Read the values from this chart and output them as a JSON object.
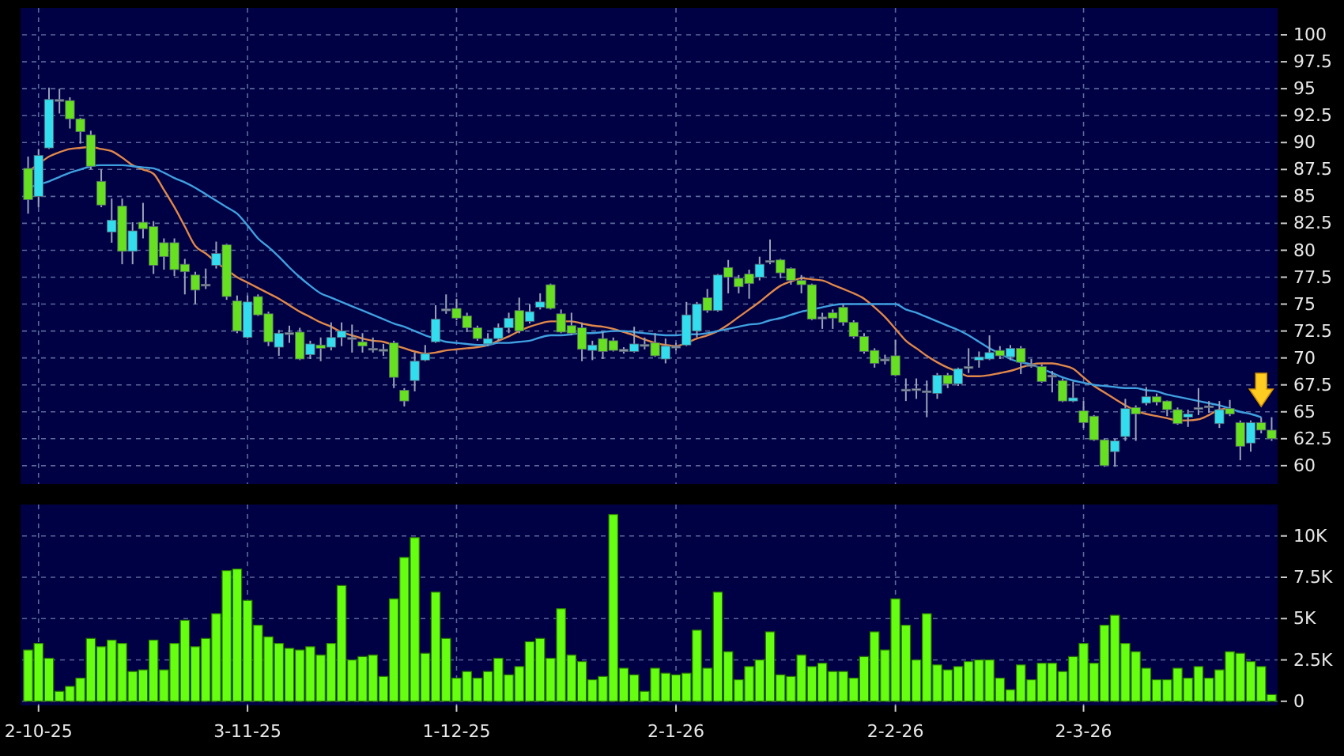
{
  "chart_data": [
    {
      "type": "candlestick",
      "categories": [
        null,
        null,
        null,
        null,
        null,
        null,
        null,
        null,
        null,
        null,
        null,
        null,
        null,
        null,
        null,
        null,
        null,
        null,
        null,
        null,
        null,
        null,
        null,
        null,
        null,
        null,
        null,
        null,
        null,
        null,
        null,
        null,
        null,
        null,
        null,
        null,
        null,
        null,
        null,
        null,
        null,
        null,
        null,
        null,
        null,
        null,
        null,
        null,
        null,
        null,
        null,
        null,
        null,
        null,
        null,
        null,
        null,
        null,
        null,
        null,
        null,
        null,
        null,
        null,
        null,
        null,
        null,
        null,
        null,
        null,
        null,
        null,
        null,
        null,
        null,
        null,
        null,
        null,
        null,
        null,
        null,
        null,
        null,
        null,
        null,
        null,
        null,
        null,
        null,
        null,
        null,
        null,
        null,
        null,
        null,
        null,
        null,
        null,
        null,
        null,
        null,
        null,
        null,
        null,
        null,
        null,
        null,
        null,
        null,
        null,
        null,
        null,
        null,
        null,
        null,
        null,
        null,
        null,
        null,
        null
      ],
      "ohlc": [
        [
          87.6,
          88.7,
          83.4,
          84.7
        ],
        [
          85.0,
          89.4,
          84.0,
          88.8
        ],
        [
          89.5,
          95.1,
          89.4,
          94.0
        ],
        [
          94.0,
          95.0,
          92.7,
          93.9
        ],
        [
          93.9,
          94.2,
          91.3,
          92.2
        ],
        [
          92.2,
          92.3,
          89.9,
          91.0
        ],
        [
          90.7,
          91.1,
          87.5,
          87.8
        ],
        [
          86.4,
          87.5,
          84.0,
          84.2
        ],
        [
          81.7,
          84.8,
          80.7,
          82.8
        ],
        [
          84.1,
          84.8,
          78.7,
          79.9
        ],
        [
          79.9,
          82.6,
          78.7,
          81.8
        ],
        [
          82.6,
          84.4,
          81.1,
          82.0
        ],
        [
          82.2,
          82.7,
          77.8,
          78.6
        ],
        [
          80.7,
          81.1,
          78.2,
          79.4
        ],
        [
          80.7,
          81.1,
          77.6,
          78.2
        ],
        [
          78.7,
          79.2,
          75.9,
          78.0
        ],
        [
          77.7,
          78.0,
          75.0,
          76.3
        ],
        [
          76.85,
          78.3,
          76.4,
          76.8
        ],
        [
          78.6,
          80.8,
          78.3,
          79.7
        ],
        [
          80.5,
          80.6,
          75.4,
          75.7
        ],
        [
          75.3,
          75.8,
          72.3,
          72.5
        ],
        [
          71.9,
          75.8,
          71.8,
          75.2
        ],
        [
          75.7,
          75.9,
          73.9,
          74.0
        ],
        [
          74.1,
          74.3,
          71.1,
          71.5
        ],
        [
          71.0,
          72.6,
          70.2,
          72.3
        ],
        [
          72.35,
          73.0,
          71.4,
          72.3
        ],
        [
          72.4,
          72.8,
          69.8,
          69.9
        ],
        [
          70.3,
          71.6,
          69.9,
          71.3
        ],
        [
          71.2,
          71.9,
          69.7,
          70.9
        ],
        [
          71.0,
          73.3,
          70.7,
          71.9
        ],
        [
          71.9,
          73.3,
          71.1,
          72.5
        ],
        [
          71.9,
          73.1,
          70.5,
          71.85
        ],
        [
          71.5,
          72.3,
          70.5,
          71.1
        ],
        [
          70.9,
          71.9,
          70.5,
          70.85
        ],
        [
          70.8,
          71.3,
          70.2,
          70.75
        ],
        [
          71.4,
          71.6,
          67.2,
          68.2
        ],
        [
          67.0,
          67.2,
          65.5,
          66.0
        ],
        [
          67.9,
          70.5,
          66.9,
          69.7
        ],
        [
          69.8,
          71.2,
          69.7,
          70.4
        ],
        [
          71.5,
          74.9,
          71.4,
          73.6
        ],
        [
          74.55,
          75.9,
          74.1,
          74.5
        ],
        [
          74.6,
          75.5,
          73.5,
          73.7
        ],
        [
          73.9,
          74.2,
          72.4,
          72.8
        ],
        [
          72.8,
          73.0,
          71.6,
          71.8
        ],
        [
          71.3,
          72.3,
          71.1,
          71.8
        ],
        [
          71.8,
          73.2,
          71.6,
          72.8
        ],
        [
          72.8,
          74.2,
          72.3,
          73.7
        ],
        [
          74.4,
          75.6,
          72.3,
          72.5
        ],
        [
          73.4,
          75.0,
          73.2,
          74.3
        ],
        [
          74.7,
          76.0,
          74.5,
          75.2
        ],
        [
          76.8,
          76.9,
          74.5,
          74.6
        ],
        [
          74.1,
          74.5,
          72.3,
          72.4
        ],
        [
          73.0,
          74.2,
          72.1,
          72.3
        ],
        [
          72.8,
          73.3,
          69.7,
          70.8
        ],
        [
          70.7,
          71.6,
          69.8,
          71.2
        ],
        [
          71.8,
          72.4,
          69.9,
          70.6
        ],
        [
          71.6,
          71.9,
          70.6,
          70.7
        ],
        [
          70.8,
          71.0,
          70.4,
          70.6
        ],
        [
          70.6,
          72.9,
          70.5,
          71.3
        ],
        [
          71.25,
          71.9,
          70.8,
          71.2
        ],
        [
          71.4,
          72.3,
          70.1,
          70.2
        ],
        [
          69.9,
          71.8,
          69.5,
          71.1
        ],
        [
          71.1,
          71.4,
          70.7,
          71.05
        ],
        [
          71.2,
          75.2,
          71.1,
          74.0
        ],
        [
          72.5,
          75.2,
          71.9,
          75.0
        ],
        [
          75.6,
          76.4,
          74.2,
          74.4
        ],
        [
          74.4,
          77.8,
          74.3,
          77.7
        ],
        [
          78.4,
          79.1,
          76.0,
          77.5
        ],
        [
          77.4,
          77.7,
          76.0,
          76.6
        ],
        [
          77.8,
          78.2,
          75.5,
          76.9
        ],
        [
          77.5,
          79.4,
          77.2,
          78.7
        ],
        [
          79.05,
          81.0,
          78.7,
          79.0
        ],
        [
          79.1,
          79.2,
          77.4,
          77.9
        ],
        [
          78.3,
          78.4,
          76.8,
          77.2
        ],
        [
          77.2,
          77.7,
          76.0,
          76.8
        ],
        [
          76.8,
          76.9,
          73.5,
          73.6
        ],
        [
          73.8,
          74.2,
          72.7,
          73.75
        ],
        [
          74.2,
          74.5,
          72.7,
          73.7
        ],
        [
          74.7,
          75.0,
          73.0,
          73.3
        ],
        [
          73.3,
          73.5,
          71.8,
          72.0
        ],
        [
          72.0,
          72.3,
          70.4,
          70.6
        ],
        [
          70.7,
          70.9,
          69.1,
          69.5
        ],
        [
          69.9,
          70.3,
          69.4,
          69.85
        ],
        [
          70.2,
          71.7,
          68.3,
          68.4
        ],
        [
          67.1,
          68.1,
          66.0,
          67.05
        ],
        [
          67.15,
          68.1,
          66.2,
          67.1
        ],
        [
          66.95,
          67.9,
          64.5,
          66.9
        ],
        [
          66.7,
          68.6,
          66.2,
          68.4
        ],
        [
          68.4,
          68.6,
          67.2,
          67.6
        ],
        [
          67.6,
          69.1,
          67.4,
          69.0
        ],
        [
          69.2,
          70.9,
          68.6,
          69.15
        ],
        [
          69.8,
          70.6,
          69.1,
          70.1
        ],
        [
          69.9,
          72.1,
          69.8,
          70.5
        ],
        [
          70.7,
          71.1,
          69.9,
          70.2
        ],
        [
          70.1,
          71.2,
          69.8,
          70.9
        ],
        [
          70.9,
          71.1,
          68.5,
          69.6
        ],
        [
          69.4,
          69.9,
          69.1,
          69.35
        ],
        [
          69.2,
          69.4,
          67.7,
          67.8
        ],
        [
          68.4,
          68.8,
          66.8,
          68.35
        ],
        [
          67.9,
          68.1,
          65.9,
          66.0
        ],
        [
          66.0,
          67.8,
          65.9,
          66.3
        ],
        [
          65.1,
          66.0,
          63.5,
          64.0
        ],
        [
          64.6,
          64.7,
          62.3,
          62.4
        ],
        [
          62.4,
          62.5,
          59.9,
          60.0
        ],
        [
          61.3,
          62.5,
          59.9,
          62.3
        ],
        [
          62.7,
          66.2,
          62.3,
          65.3
        ],
        [
          65.4,
          65.6,
          62.3,
          64.8
        ],
        [
          65.8,
          67.3,
          65.6,
          66.4
        ],
        [
          66.4,
          66.7,
          65.6,
          65.9
        ],
        [
          66.0,
          66.05,
          64.6,
          65.2
        ],
        [
          65.2,
          65.4,
          63.8,
          63.9
        ],
        [
          64.5,
          65.2,
          63.6,
          64.8
        ],
        [
          65.4,
          67.2,
          64.7,
          65.35
        ],
        [
          65.5,
          66.0,
          64.9,
          65.55
        ],
        [
          63.9,
          66.0,
          63.5,
          65.2
        ],
        [
          65.3,
          66.1,
          64.6,
          64.8
        ],
        [
          64.0,
          64.2,
          60.5,
          61.8
        ],
        [
          62.1,
          64.2,
          61.3,
          64.0
        ],
        [
          64.0,
          64.5,
          63.0,
          63.3
        ],
        [
          63.3,
          64.5,
          62.3,
          62.5
        ]
      ],
      "colors": [
        "#66e020",
        "#33ddee",
        "#33ddee",
        "#8a96a8",
        "#66e020",
        "#66e020",
        "#66e020",
        "#66e020",
        "#33ddee",
        "#66e020",
        "#33ddee",
        "#66e020",
        "#66e020",
        "#66e020",
        "#66e020",
        "#66e020",
        "#66e020",
        "#8a96a8",
        "#33ddee",
        "#66e020",
        "#66e020",
        "#33ddee",
        "#66e020",
        "#66e020",
        "#33ddee",
        "#8a96a8",
        "#66e020",
        "#33ddee",
        "#66e020",
        "#33ddee",
        "#33ddee",
        "#8a96a8",
        "#66e020",
        "#8a96a8",
        "#8a96a8",
        "#66e020",
        "#66e020",
        "#33ddee",
        "#33ddee",
        "#33ddee",
        "#8a96a8",
        "#66e020",
        "#66e020",
        "#66e020",
        "#33ddee",
        "#33ddee",
        "#33ddee",
        "#66e020",
        "#33ddee",
        "#33ddee",
        "#66e020",
        "#66e020",
        "#66e020",
        "#66e020",
        "#33ddee",
        "#66e020",
        "#66e020",
        "#8a96a8",
        "#33ddee",
        "#8a96a8",
        "#66e020",
        "#33ddee",
        "#8a96a8",
        "#33ddee",
        "#33ddee",
        "#66e020",
        "#33ddee",
        "#66e020",
        "#66e020",
        "#66e020",
        "#33ddee",
        "#8a96a8",
        "#66e020",
        "#66e020",
        "#66e020",
        "#66e020",
        "#8a96a8",
        "#66e020",
        "#66e020",
        "#66e020",
        "#66e020",
        "#66e020",
        "#8a96a8",
        "#66e020",
        "#8a96a8",
        "#8a96a8",
        "#8a96a8",
        "#33ddee",
        "#66e020",
        "#33ddee",
        "#8a96a8",
        "#33ddee",
        "#33ddee",
        "#66e020",
        "#33ddee",
        "#66e020",
        "#8a96a8",
        "#66e020",
        "#8a96a8",
        "#66e020",
        "#33ddee",
        "#66e020",
        "#66e020",
        "#66e020",
        "#33ddee",
        "#33ddee",
        "#66e020",
        "#33ddee",
        "#66e020",
        "#66e020",
        "#66e020",
        "#33ddee",
        "#8a96a8",
        "#8a96a8",
        "#33ddee",
        "#66e020",
        "#66e020",
        "#33ddee",
        "#66e020",
        "#66e020"
      ],
      "series": [
        {
          "type": "line",
          "color": "#e0884a",
          "values": [
            87.3,
            88.0,
            88.7,
            89.1,
            89.4,
            89.5,
            89.6,
            89.4,
            89.2,
            88.6,
            87.9,
            87.5,
            87.1,
            85.6,
            84.0,
            82.2,
            80.4,
            79.7,
            78.9,
            78.2,
            77.5,
            77.0,
            76.5,
            76.0,
            75.5,
            74.9,
            74.3,
            73.8,
            73.3,
            72.9,
            72.4,
            72.1,
            71.8,
            71.6,
            71.5,
            71.2,
            70.9,
            70.6,
            70.4,
            70.5,
            70.7,
            70.8,
            70.9,
            71.0,
            71.2,
            71.6,
            72.0,
            72.5,
            72.9,
            73.2,
            73.4,
            73.4,
            73.4,
            73.2,
            73.0,
            72.9,
            72.7,
            72.4,
            72.1,
            71.7,
            71.4,
            71.2,
            71.1,
            71.4,
            71.8,
            72.1,
            72.5,
            73.1,
            73.8,
            74.5,
            75.2,
            76.0,
            76.7,
            77.1,
            77.4,
            77.3,
            77.2,
            76.8,
            76.4,
            76.0,
            75.5,
            74.7,
            73.8,
            72.7,
            71.6,
            70.9,
            70.2,
            69.6,
            69.1,
            68.7,
            68.3,
            68.3,
            68.4,
            68.6,
            68.8,
            69.1,
            69.4,
            69.5,
            69.5,
            69.3,
            69.0,
            68.2,
            67.4,
            66.8,
            66.2,
            65.6,
            65.1,
            64.8,
            64.6,
            64.4,
            64.2,
            64.2,
            64.3,
            64.7,
            65.2,
            65.3,
            null,
            null,
            null,
            null
          ]
        },
        {
          "type": "line",
          "color": "#3fa0e0",
          "values": [
            85.8,
            86.1,
            86.4,
            86.8,
            87.2,
            87.5,
            87.8,
            87.9,
            87.9,
            87.9,
            87.8,
            87.7,
            87.6,
            87.2,
            86.7,
            86.3,
            85.8,
            85.2,
            84.6,
            84.0,
            83.4,
            82.3,
            81.1,
            80.3,
            79.4,
            78.4,
            77.5,
            76.7,
            76.0,
            75.6,
            75.2,
            74.8,
            74.4,
            74.0,
            73.6,
            73.2,
            72.9,
            72.5,
            72.1,
            71.8,
            71.5,
            71.4,
            71.3,
            71.2,
            71.2,
            71.4,
            71.4,
            71.5,
            71.6,
            71.9,
            72.1,
            72.1,
            72.2,
            72.3,
            72.3,
            72.4,
            72.5,
            72.5,
            72.4,
            72.3,
            72.2,
            72.1,
            72.1,
            72.2,
            72.2,
            72.3,
            72.5,
            72.7,
            72.9,
            73.1,
            73.2,
            73.5,
            73.7,
            74.0,
            74.3,
            74.5,
            74.7,
            74.9,
            75.0,
            75.0,
            75.0,
            75.0,
            75.0,
            75.0,
            74.5,
            74.2,
            73.8,
            73.4,
            73.0,
            72.6,
            72.1,
            71.5,
            70.9,
            70.4,
            69.9,
            69.6,
            69.4,
            69.0,
            68.6,
            68.2,
            67.9,
            67.7,
            67.5,
            67.4,
            67.3,
            67.2,
            67.2,
            67.0,
            66.9,
            66.6,
            66.4,
            66.2,
            66.0,
            65.8,
            65.6,
            65.3,
            65.0,
            64.8,
            64.5,
            null
          ]
        }
      ],
      "ylim": [
        58.3,
        102.5
      ],
      "yticks": [
        60,
        62.5,
        65,
        67.5,
        70,
        72.5,
        75,
        77.5,
        80,
        82.5,
        85,
        87.5,
        90,
        92.5,
        95,
        97.5,
        100
      ],
      "grid": true,
      "tick_labels": "y"
    },
    {
      "type": "bar",
      "categories": [
        null,
        "2-10-25",
        null,
        null,
        null,
        null,
        null,
        null,
        null,
        null,
        null,
        null,
        null,
        null,
        null,
        null,
        null,
        null,
        null,
        null,
        null,
        "3-11-25",
        null,
        null,
        null,
        null,
        null,
        null,
        null,
        null,
        null,
        null,
        null,
        null,
        null,
        null,
        null,
        null,
        null,
        null,
        null,
        "1-12-25",
        null,
        null,
        null,
        null,
        null,
        null,
        null,
        null,
        null,
        null,
        null,
        null,
        null,
        null,
        null,
        null,
        null,
        null,
        null,
        null,
        "2-1-26",
        null,
        null,
        null,
        null,
        null,
        null,
        null,
        null,
        null,
        null,
        null,
        null,
        null,
        null,
        null,
        null,
        null,
        null,
        null,
        null,
        "2-2-26",
        null,
        null,
        null,
        null,
        null,
        null,
        null,
        null,
        null,
        null,
        null,
        null,
        null,
        null,
        null,
        null,
        null,
        "2-3-26",
        null,
        null,
        null,
        null,
        null,
        null,
        null,
        null,
        null,
        null,
        null,
        null,
        null,
        null,
        null,
        null,
        null,
        null
      ],
      "values": [
        3100,
        3500,
        2600,
        600,
        900,
        1400,
        3800,
        3300,
        3700,
        3500,
        1800,
        1900,
        3700,
        1900,
        3500,
        4900,
        3300,
        3800,
        5300,
        7900,
        8000,
        6100,
        4600,
        3900,
        3500,
        3200,
        3100,
        3300,
        2800,
        3500,
        7000,
        2500,
        2700,
        2800,
        1500,
        6200,
        8700,
        9900,
        2900,
        6600,
        3800,
        1400,
        1800,
        1400,
        1800,
        2600,
        1600,
        2100,
        3600,
        3800,
        2600,
        5600,
        2800,
        2400,
        1300,
        1500,
        11300,
        2000,
        1600,
        600,
        2000,
        1700,
        1600,
        1700,
        4300,
        2000,
        6600,
        3000,
        1300,
        2100,
        2500,
        4200,
        1600,
        1500,
        2800,
        2100,
        2300,
        1800,
        1800,
        1400,
        2700,
        4200,
        3100,
        6200,
        4600,
        2500,
        5300,
        2200,
        1900,
        2100,
        2400,
        2500,
        2500,
        1400,
        700,
        2200,
        1300,
        2300,
        2300,
        1800,
        2700,
        3500,
        2300,
        4600,
        5200,
        3500,
        3000,
        2000,
        1300,
        1300,
        2000,
        1400,
        2100,
        1400,
        1900,
        3000,
        2900,
        2400,
        2100,
        400
      ],
      "color": "#66ff11",
      "ylim": [
        -250,
        11900
      ],
      "yticks": [
        0,
        {
          "value": 2500,
          "label": "2.5K"
        },
        {
          "value": 5000,
          "label": "5K"
        },
        {
          "value": 7500,
          "label": "7.5K"
        },
        {
          "value": 10000,
          "label": "10K"
        }
      ],
      "grid": true
    }
  ]
}
